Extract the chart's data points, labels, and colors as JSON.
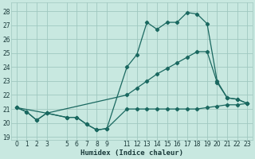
{
  "xlabel": "Humidex (Indice chaleur)",
  "bg_color": "#c8e8e0",
  "grid_color": "#a0c8c0",
  "line_color": "#1a6860",
  "xlim": [
    -0.5,
    23.5
  ],
  "ylim": [
    18.8,
    28.6
  ],
  "xticks": [
    0,
    1,
    2,
    3,
    5,
    6,
    7,
    8,
    9,
    11,
    12,
    13,
    14,
    15,
    16,
    17,
    18,
    19,
    20,
    21,
    22,
    23
  ],
  "yticks": [
    19,
    20,
    21,
    22,
    23,
    24,
    25,
    26,
    27,
    28
  ],
  "line1_x": [
    0,
    1,
    2,
    3,
    5,
    6,
    7,
    8,
    9,
    11,
    12,
    13,
    14,
    15,
    16,
    17,
    18,
    19,
    20,
    21,
    22,
    23
  ],
  "line1_y": [
    21.1,
    20.8,
    20.2,
    20.7,
    20.4,
    20.4,
    19.9,
    19.5,
    19.6,
    24.0,
    24.9,
    27.2,
    26.7,
    27.2,
    27.2,
    27.9,
    27.8,
    27.1,
    23.0,
    21.8,
    21.7,
    21.4
  ],
  "line2_x": [
    0,
    1,
    2,
    3,
    5,
    6,
    7,
    8,
    9,
    11,
    12,
    13,
    14,
    15,
    16,
    17,
    18,
    19,
    20,
    21,
    22,
    23
  ],
  "line2_y": [
    21.1,
    20.8,
    20.2,
    20.7,
    20.4,
    20.4,
    19.9,
    19.5,
    19.6,
    21.0,
    21.0,
    21.0,
    21.0,
    21.0,
    21.0,
    21.0,
    21.0,
    21.1,
    21.2,
    21.3,
    21.3,
    21.4
  ],
  "line3_x": [
    0,
    3,
    11,
    12,
    13,
    14,
    15,
    16,
    17,
    18,
    19,
    20,
    21,
    22,
    23
  ],
  "line3_y": [
    21.1,
    20.7,
    22.0,
    22.5,
    23.0,
    23.5,
    23.9,
    24.3,
    24.7,
    25.1,
    25.1,
    22.9,
    21.8,
    21.7,
    21.4
  ]
}
